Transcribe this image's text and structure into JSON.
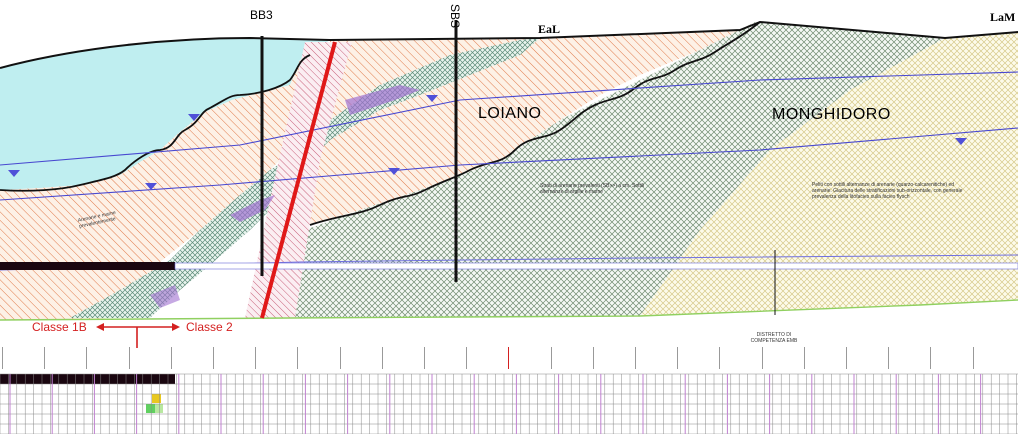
{
  "boreholes": {
    "bb3": "BB3",
    "sbs": "SBS"
  },
  "ridges": {
    "eal": "EaL",
    "lam": "LaM"
  },
  "formations": {
    "loiano": "LOIANO",
    "monghidoro": "MONGHIDORO"
  },
  "classes": {
    "left": "Classe 1B",
    "right": "Classe 2"
  },
  "notes": {
    "left_unit": "Arenarie e marne prevalentemente",
    "loiano_note": "Strati di arenarie prevalenti (SB>>) a cm. Sottili alternanze di argille e marne",
    "monghidoro_note": "Peliti con sottili alternanze di arenarie (quarzo-calcarenitiche) ed arenarie. Giacitura delle stratificazioni sub-orizzontale, con generale prevalenza della litofacies sulla facies flysch",
    "tunnel_note": "DISTRETTO DI COMPETENZA EMB"
  },
  "colors": {
    "water": "#bfeef0",
    "orange_hatch": "#e58a5a",
    "green_cross": "#8ea58e",
    "yellow_cross": "#d9cf9a",
    "fault": "#e01818",
    "class_arrow": "#d42020",
    "tunnel_dark": "#1a0610",
    "water_table": "#5050d8",
    "purple_band": "#a070d0"
  },
  "station_highlight_index": 12,
  "station_count": 24
}
